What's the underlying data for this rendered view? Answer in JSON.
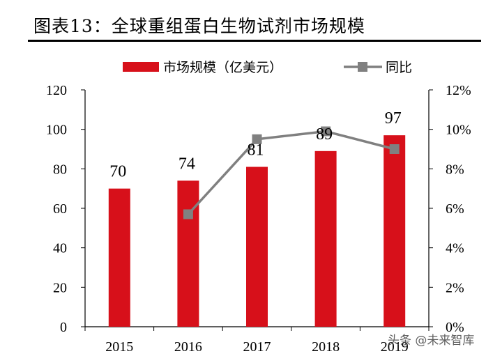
{
  "figure": {
    "title": "图表13：全球重组蛋白生物试剂市场规模",
    "watermark": "头条 @未来智库"
  },
  "chart_data": {
    "type": "bar",
    "categories": [
      "2015",
      "2016",
      "2017",
      "2018",
      "2019"
    ],
    "series": [
      {
        "name": "市场规模（亿美元）",
        "type": "bar",
        "axis": "left",
        "color": "#d7101a",
        "values": [
          70,
          74,
          81,
          89,
          97
        ]
      },
      {
        "name": "同比",
        "type": "line",
        "axis": "right",
        "color": "#808080",
        "values": [
          null,
          0.057,
          0.095,
          0.099,
          0.09
        ]
      }
    ],
    "y_left": {
      "min": 0,
      "max": 120,
      "ticks": [
        "0",
        "20",
        "40",
        "60",
        "80",
        "100",
        "120"
      ]
    },
    "y_right": {
      "min": 0,
      "max": 0.12,
      "ticks": [
        "0%",
        "2%",
        "4%",
        "6%",
        "8%",
        "10%",
        "12%"
      ]
    },
    "legend_position": "top-center",
    "grid": false
  }
}
